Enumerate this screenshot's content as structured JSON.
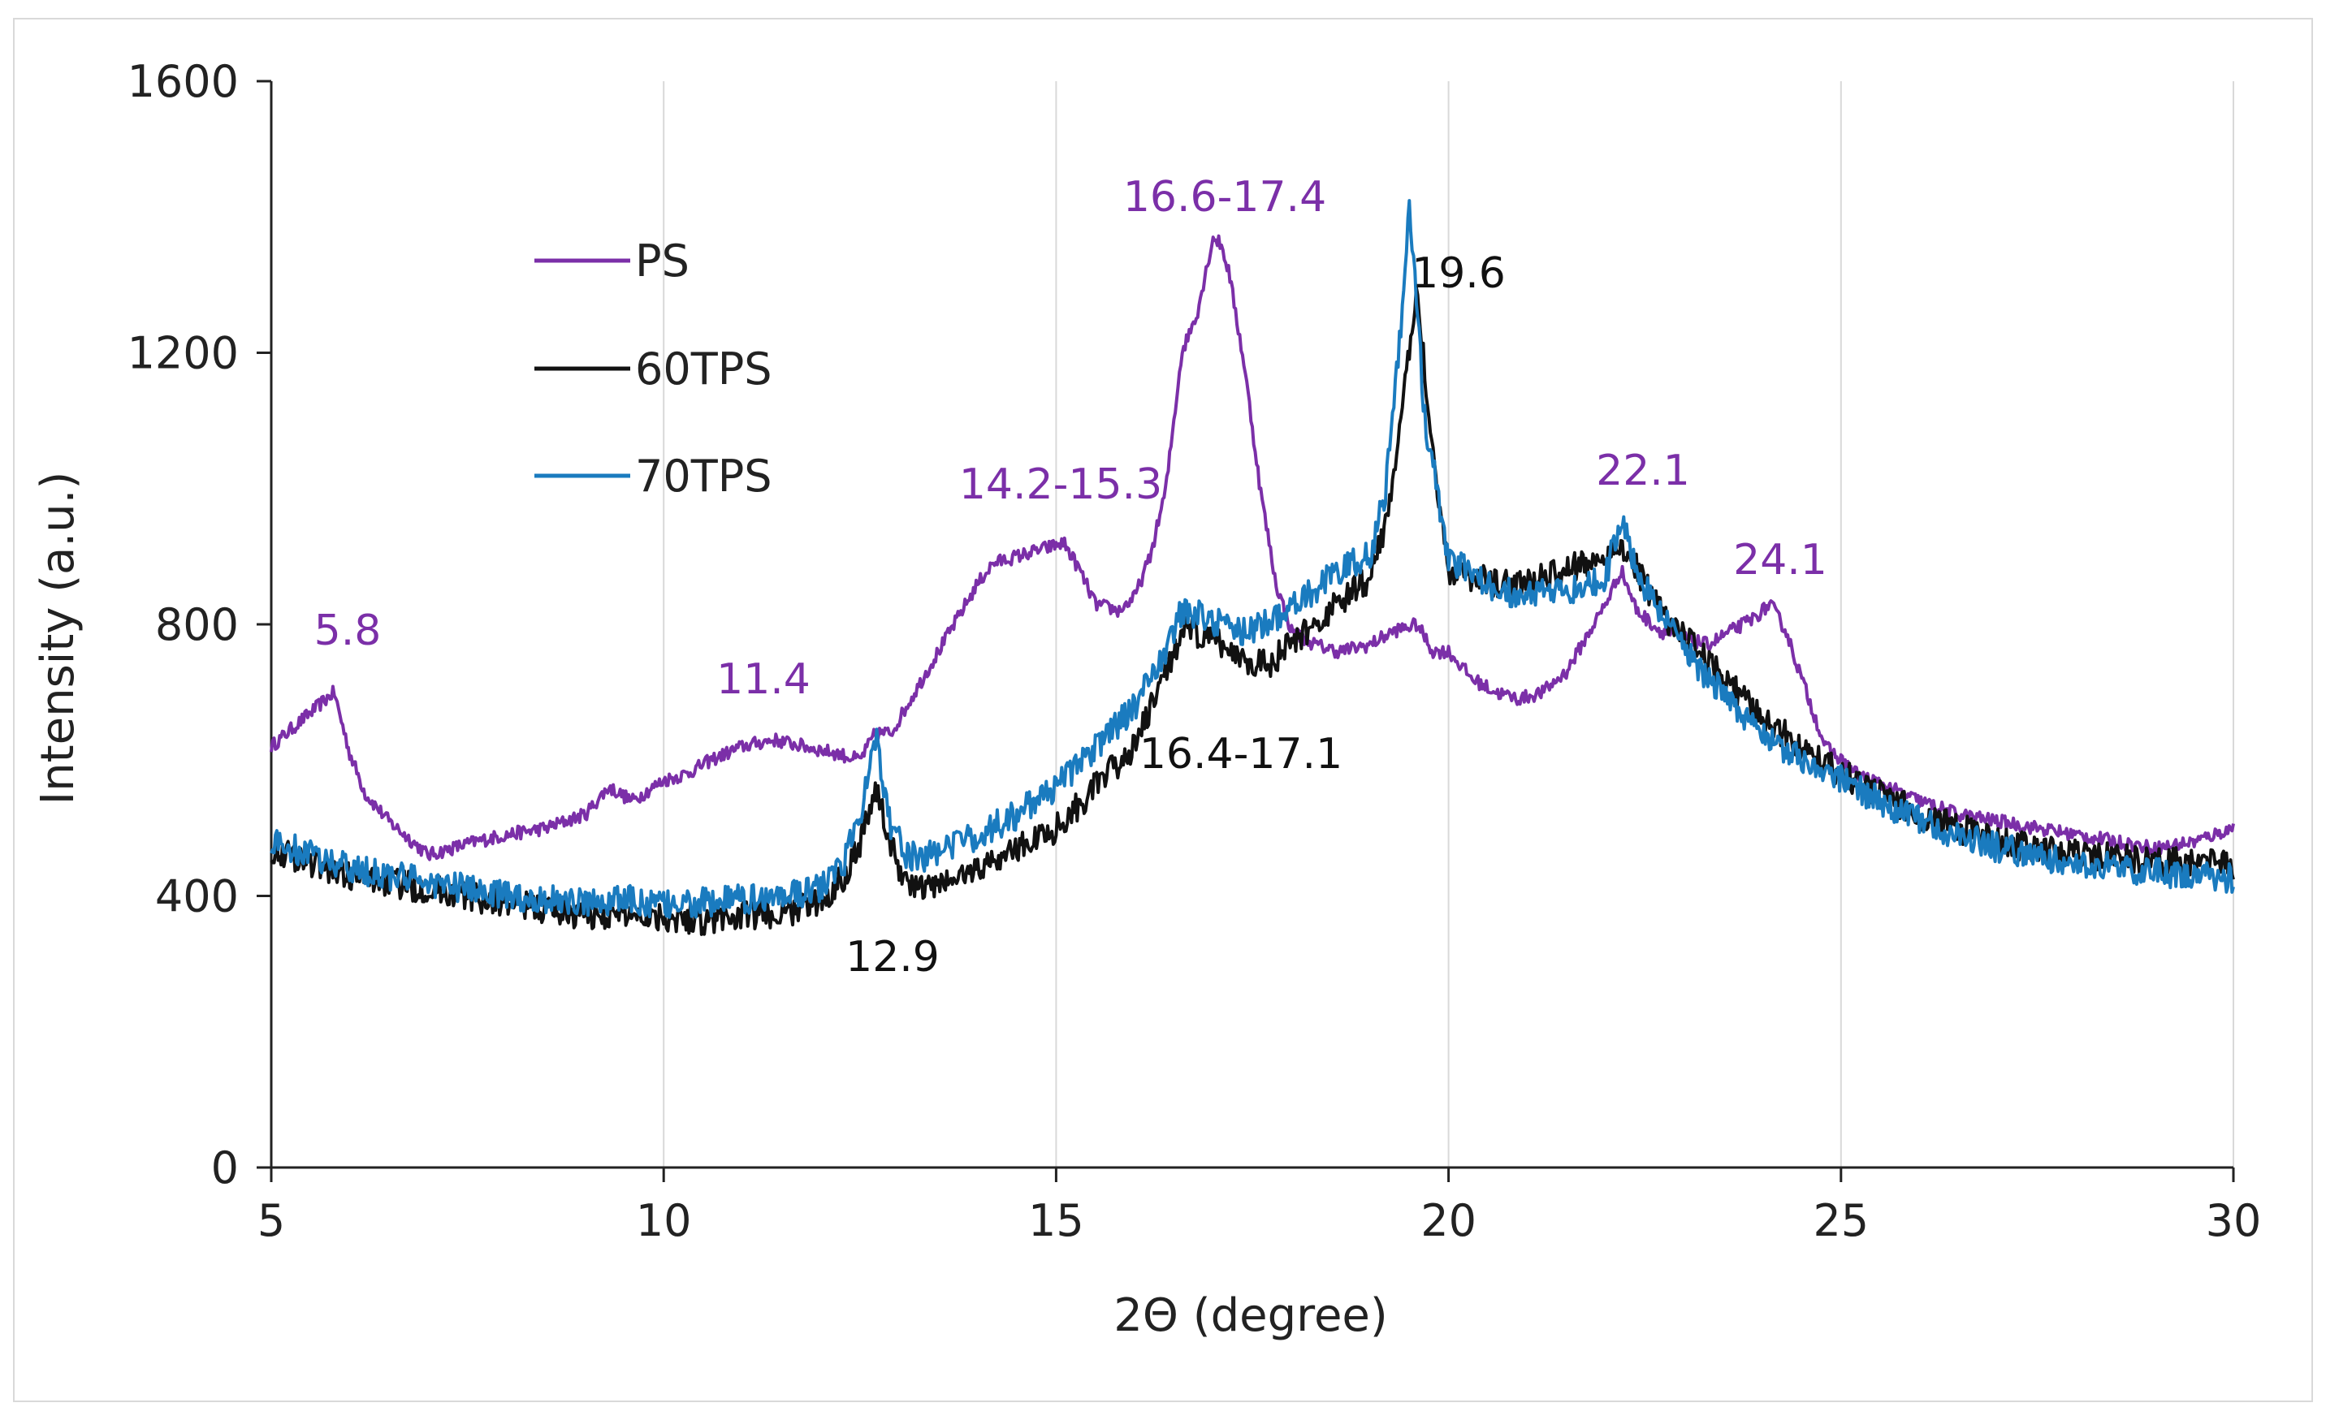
{
  "chart_data": {
    "type": "line",
    "title": "",
    "xlabel": "2Θ (degree)",
    "ylabel": "Intensity (a.u.)",
    "xlim": [
      5,
      30
    ],
    "ylim": [
      0,
      1600
    ],
    "xticks": [
      5,
      10,
      15,
      20,
      25,
      30
    ],
    "yticks": [
      0,
      400,
      800,
      1200,
      1600
    ],
    "grid": "vertical",
    "legend_position": "top-left",
    "series": [
      {
        "name": "PS",
        "color": "#7b2fa8",
        "x": [
          5.0,
          5.3,
          5.6,
          5.8,
          6.0,
          6.2,
          6.5,
          6.8,
          7.0,
          7.3,
          7.6,
          8.0,
          8.5,
          9.0,
          9.3,
          9.6,
          10.0,
          10.3,
          10.6,
          11.0,
          11.4,
          11.8,
          12.2,
          12.5,
          12.7,
          12.9,
          13.2,
          13.5,
          13.8,
          14.0,
          14.2,
          14.5,
          14.8,
          15.1,
          15.3,
          15.5,
          15.8,
          16.0,
          16.2,
          16.4,
          16.6,
          16.8,
          17.0,
          17.1,
          17.2,
          17.4,
          17.6,
          17.8,
          18.0,
          18.3,
          18.6,
          19.0,
          19.3,
          19.6,
          19.8,
          20.0,
          20.3,
          20.6,
          20.9,
          21.2,
          21.5,
          21.8,
          22.0,
          22.2,
          22.4,
          22.7,
          23.0,
          23.3,
          23.6,
          23.9,
          24.1,
          24.3,
          24.5,
          24.8,
          25.2,
          25.6,
          26.0,
          26.5,
          27.0,
          27.5,
          28.0,
          28.5,
          29.0,
          29.5,
          30.0
        ],
        "y": [
          620,
          650,
          680,
          700,
          610,
          550,
          510,
          480,
          460,
          470,
          480,
          490,
          500,
          520,
          560,
          540,
          570,
          580,
          600,
          620,
          630,
          620,
          610,
          600,
          640,
          640,
          700,
          760,
          820,
          860,
          890,
          900,
          910,
          920,
          880,
          830,
          820,
          840,
          900,
          1000,
          1200,
          1260,
          1370,
          1360,
          1320,
          1180,
          1000,
          860,
          790,
          770,
          760,
          770,
          790,
          800,
          760,
          760,
          720,
          700,
          690,
          700,
          730,
          790,
          830,
          880,
          820,
          790,
          780,
          770,
          790,
          810,
          830,
          790,
          720,
          620,
          580,
          560,
          540,
          520,
          510,
          500,
          490,
          480,
          470,
          480,
          500
        ]
      },
      {
        "name": "60TPS",
        "color": "#111111",
        "x": [
          5.0,
          5.5,
          6.0,
          6.5,
          7.0,
          7.5,
          8.0,
          8.5,
          9.0,
          9.5,
          10.0,
          10.5,
          11.0,
          11.5,
          12.0,
          12.3,
          12.5,
          12.7,
          12.9,
          13.1,
          13.3,
          13.6,
          14.0,
          14.5,
          15.0,
          15.5,
          16.0,
          16.3,
          16.6,
          16.9,
          17.1,
          17.4,
          17.7,
          18.0,
          18.3,
          18.6,
          19.0,
          19.2,
          19.4,
          19.6,
          19.8,
          20.0,
          20.3,
          20.6,
          21.0,
          21.5,
          22.0,
          22.2,
          22.4,
          22.7,
          23.0,
          23.5,
          24.0,
          24.5,
          25.0,
          25.5,
          26.0,
          26.5,
          27.0,
          27.5,
          28.0,
          28.5,
          29.0,
          29.5,
          30.0
        ],
        "y": [
          470,
          450,
          430,
          420,
          410,
          400,
          390,
          380,
          370,
          375,
          370,
          365,
          370,
          375,
          390,
          430,
          480,
          560,
          470,
          420,
          410,
          420,
          440,
          470,
          500,
          560,
          620,
          700,
          790,
          780,
          770,
          750,
          740,
          770,
          800,
          830,
          870,
          950,
          1100,
          1300,
          1050,
          880,
          870,
          860,
          860,
          880,
          900,
          920,
          880,
          820,
          780,
          720,
          660,
          620,
          580,
          550,
          520,
          500,
          480,
          470,
          460,
          455,
          450,
          450,
          445
        ]
      },
      {
        "name": "70TPS",
        "color": "#1a7bbf",
        "x": [
          5.0,
          5.5,
          6.0,
          6.5,
          7.0,
          7.5,
          8.0,
          8.5,
          9.0,
          9.5,
          10.0,
          10.5,
          11.0,
          11.5,
          12.0,
          12.3,
          12.5,
          12.7,
          12.9,
          13.1,
          13.3,
          13.6,
          14.0,
          14.5,
          15.0,
          15.5,
          16.0,
          16.3,
          16.6,
          16.9,
          17.1,
          17.4,
          17.7,
          18.0,
          18.3,
          18.6,
          19.0,
          19.2,
          19.4,
          19.5,
          19.7,
          20.0,
          20.3,
          20.6,
          21.0,
          21.5,
          22.0,
          22.2,
          22.4,
          22.7,
          23.0,
          23.5,
          24.0,
          24.5,
          25.0,
          25.5,
          26.0,
          26.5,
          27.0,
          27.5,
          28.0,
          28.5,
          29.0,
          29.5,
          30.0
        ],
        "y": [
          480,
          460,
          440,
          430,
          420,
          410,
          400,
          395,
          390,
          395,
          385,
          390,
          395,
          400,
          410,
          450,
          520,
          640,
          500,
          460,
          455,
          470,
          490,
          520,
          560,
          620,
          680,
          740,
          820,
          810,
          800,
          790,
          800,
          830,
          850,
          880,
          900,
          1000,
          1250,
          1430,
          1100,
          900,
          870,
          850,
          840,
          850,
          870,
          960,
          870,
          820,
          760,
          700,
          640,
          600,
          570,
          540,
          510,
          490,
          470,
          460,
          450,
          440,
          435,
          430,
          425
        ]
      }
    ],
    "annotations": [
      {
        "text": "5.8",
        "color": "#7b2fa8"
      },
      {
        "text": "11.4",
        "color": "#7b2fa8"
      },
      {
        "text": "14.2-15.3",
        "color": "#7b2fa8"
      },
      {
        "text": "16.6-17.4",
        "color": "#7b2fa8"
      },
      {
        "text": "22.1",
        "color": "#7b2fa8"
      },
      {
        "text": "24.1",
        "color": "#7b2fa8"
      },
      {
        "text": "19.6",
        "color": "#111111"
      },
      {
        "text": "12.9",
        "color": "#111111"
      },
      {
        "text": "16.4-17.1",
        "color": "#111111"
      }
    ]
  }
}
